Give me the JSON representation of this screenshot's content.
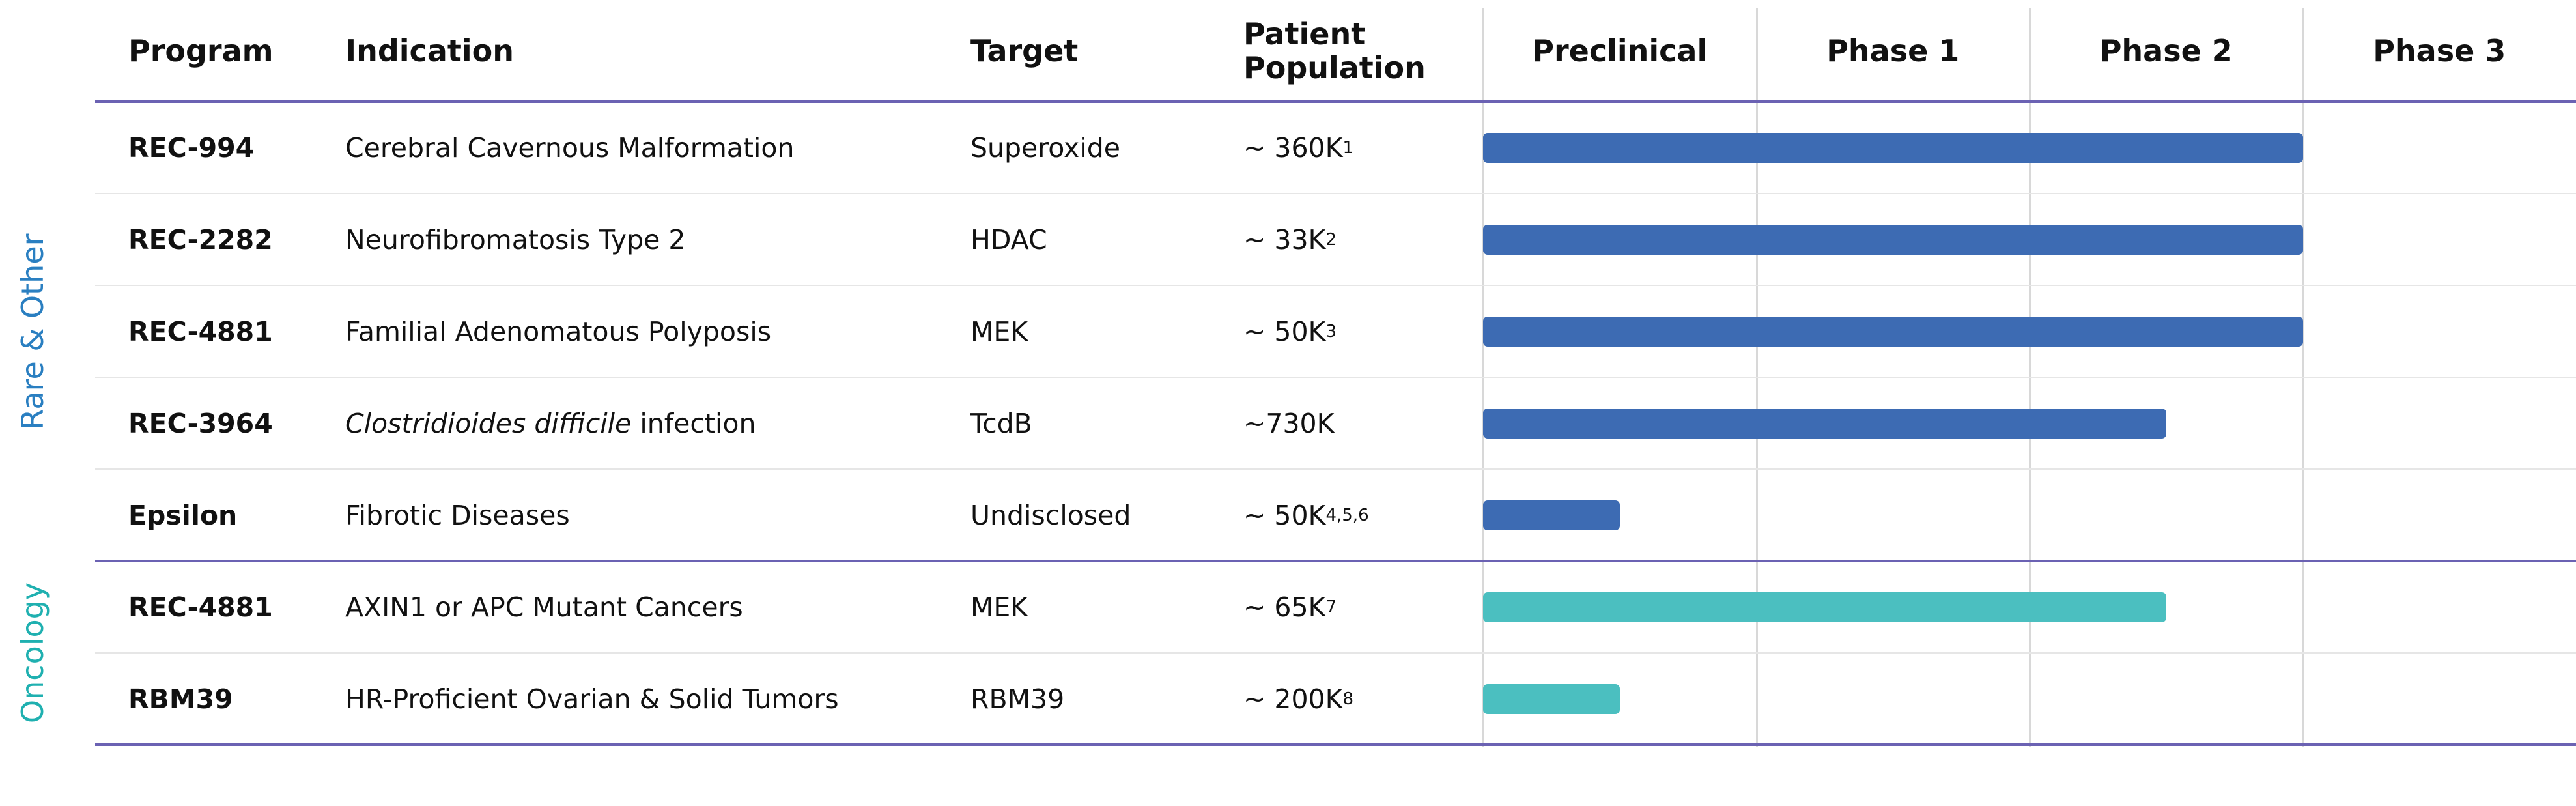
{
  "header": {
    "columns": [
      "Program",
      "Indication",
      "Target",
      "Patient Population"
    ],
    "stages": [
      "Preclinical",
      "Phase 1",
      "Phase 2",
      "Phase 3"
    ]
  },
  "groups": [
    {
      "label": "Rare & Other",
      "color": "#2a7fc1",
      "bar_color": "#3d6bb3",
      "rows": [
        {
          "program": "REC-994",
          "indication": "Cerebral Cavernous Malformation",
          "target": "Superoxide",
          "population": "~ 360K",
          "population_note": "1",
          "progress": 3
        },
        {
          "program": "REC-2282",
          "indication": "Neurofibromatosis Type 2",
          "target": "HDAC",
          "population": "~ 33K",
          "population_note": "2",
          "progress": 3
        },
        {
          "program": "REC-4881",
          "indication": "Familial Adenomatous Polyposis",
          "target": "MEK",
          "population": "~ 50K",
          "population_note": "3",
          "progress": 3
        },
        {
          "program": "REC-3964",
          "indication_italic": "Clostridioides difficile",
          "indication": " infection",
          "target": "TcdB",
          "population": "~730K",
          "progress": 2.5
        },
        {
          "program": "Epsilon",
          "indication": "Fibrotic Diseases",
          "target": "Undisclosed",
          "population": "~ 50K",
          "population_note": "4,5,6",
          "progress": 0.5
        }
      ]
    },
    {
      "label": "Oncology",
      "color": "#1fb0b0",
      "bar_color": "#4bbfc0",
      "rows": [
        {
          "program": "REC-4881",
          "indication": "AXIN1 or APC Mutant Cancers",
          "target": "MEK",
          "population": "~ 65K",
          "population_note": "7",
          "progress": 2.5
        },
        {
          "program": "RBM39",
          "indication": "HR-Proficient Ovarian & Solid Tumors",
          "target": "RBM39",
          "population": "~ 200K",
          "population_note": "8",
          "progress": 0.5
        }
      ]
    }
  ]
}
